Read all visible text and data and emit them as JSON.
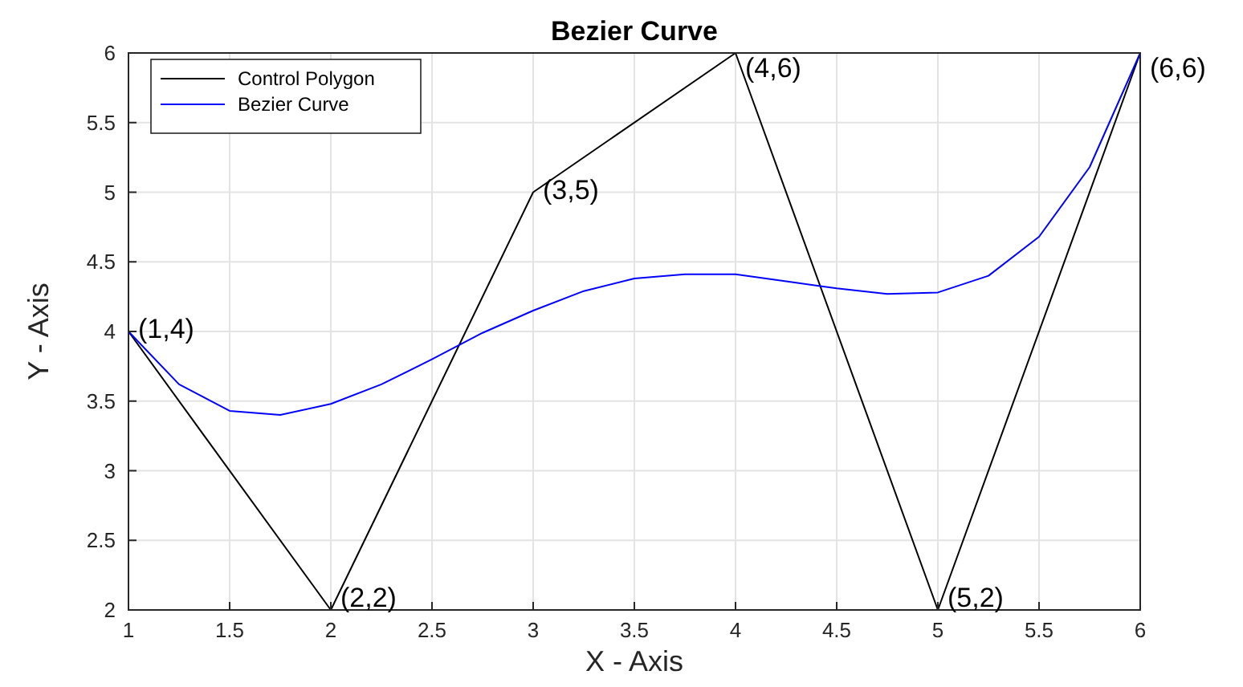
{
  "chart_data": {
    "type": "line",
    "title": "Bezier Curve",
    "xlabel": "X - Axis",
    "ylabel": "Y - Axis",
    "xlim": [
      1,
      6
    ],
    "xticks": [
      1,
      1.5,
      2,
      2.5,
      3,
      3.5,
      4,
      4.5,
      5,
      5.5,
      6
    ],
    "ylim": [
      2,
      6
    ],
    "yticks": [
      2,
      2.5,
      3,
      3.5,
      4,
      4.5,
      5,
      5.5,
      6
    ],
    "grid": true,
    "legend": "top left",
    "marker": "none",
    "line_style": "solid",
    "series": [
      {
        "name": "Control Polygon",
        "color": "#000000",
        "x": [
          1,
          2,
          3,
          4,
          5,
          6
        ],
        "values": [
          4,
          2,
          5,
          6,
          2,
          6
        ]
      },
      {
        "name": "Bezier Curve",
        "color": "#0000ff",
        "x": [
          1,
          1.25,
          1.5,
          1.75,
          2,
          2.25,
          2.5,
          2.75,
          3,
          3.25,
          3.5,
          3.75,
          4,
          4.25,
          4.5,
          4.75,
          5,
          5.25,
          5.5,
          5.75,
          6
        ],
        "values": [
          4,
          3.62,
          3.43,
          3.4,
          3.48,
          3.62,
          3.8,
          3.99,
          4.15,
          4.29,
          4.38,
          4.41,
          4.41,
          4.36,
          4.31,
          4.27,
          4.28,
          4.4,
          4.68,
          5.18,
          6
        ]
      }
    ],
    "annotations": [
      {
        "text": "(1,4)",
        "x": 1,
        "y": 4
      },
      {
        "text": "(2,2)",
        "x": 2,
        "y": 2
      },
      {
        "text": "(3,5)",
        "x": 3,
        "y": 5
      },
      {
        "text": "(4,6)",
        "x": 4,
        "y": 6
      },
      {
        "text": "(5,2)",
        "x": 5,
        "y": 2
      },
      {
        "text": "(6,6)",
        "x": 6,
        "y": 6
      }
    ]
  }
}
